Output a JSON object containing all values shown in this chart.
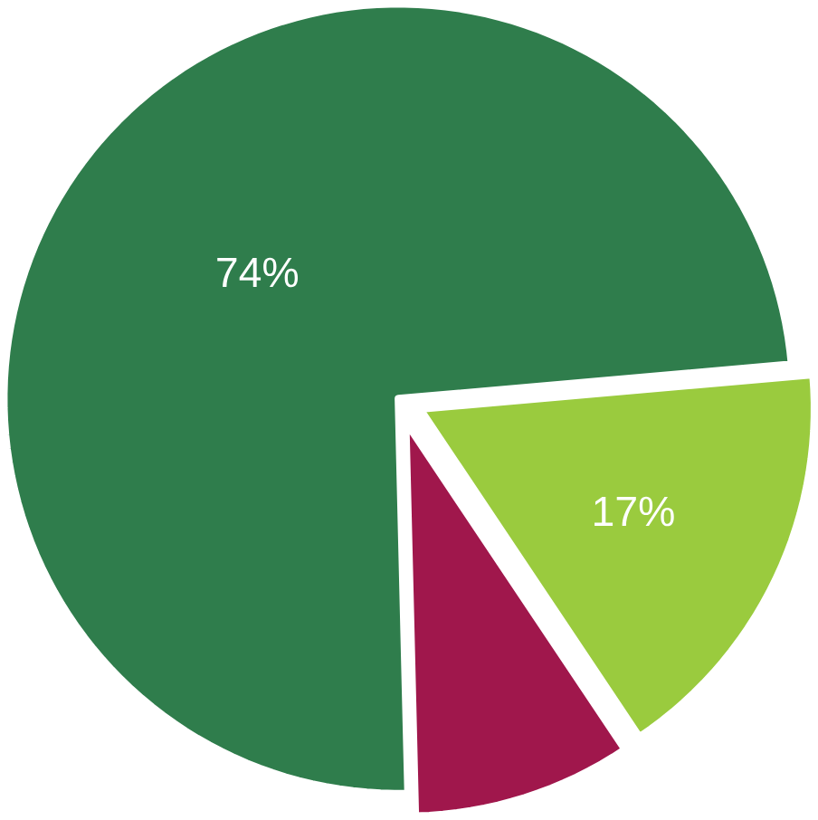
{
  "chart_data": {
    "type": "pie",
    "categories": [
      null,
      null,
      null
    ],
    "values": [
      17,
      9,
      74
    ],
    "value_labels": [
      "17%",
      null,
      "74%"
    ],
    "colors": [
      "#9acb3e",
      "#a0174c",
      "#2f7d4c"
    ]
  }
}
